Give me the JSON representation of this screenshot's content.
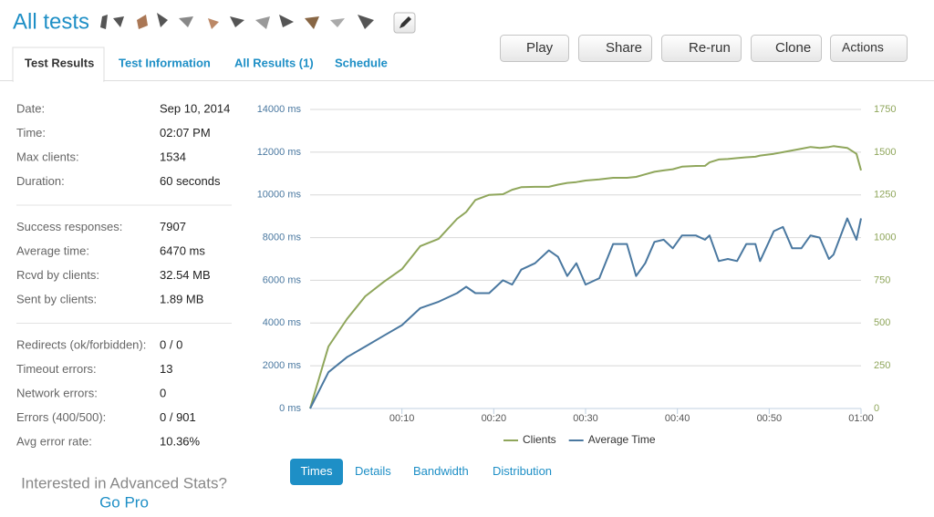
{
  "header": {
    "title": "All tests"
  },
  "tabs": [
    "Test Results",
    "Test Information",
    "All Results (1)",
    "Schedule"
  ],
  "buttons": [
    "Play",
    "Share",
    "Re-run",
    "Clone",
    "Actions"
  ],
  "stats": [
    [
      [
        "Date:",
        "Sep 10, 2014"
      ],
      [
        "Time:",
        "02:07 PM"
      ],
      [
        "Max clients:",
        "1534"
      ],
      [
        "Duration:",
        "60 seconds"
      ]
    ],
    [
      [
        "Success responses:",
        "7907"
      ],
      [
        "Average time:",
        "6470 ms"
      ],
      [
        "Rcvd by clients:",
        "32.54 MB"
      ],
      [
        "Sent by clients:",
        "1.89 MB"
      ]
    ],
    [
      [
        "Redirects (ok/forbidden):",
        "0 / 0"
      ],
      [
        "Timeout errors:",
        "13"
      ],
      [
        "Network errors:",
        "0"
      ],
      [
        "Errors (400/500):",
        "0 / 901"
      ],
      [
        "Avg error rate:",
        "10.36%"
      ]
    ]
  ],
  "promo": {
    "text": "Interested in Advanced Stats?",
    "link": "Go Pro"
  },
  "chart_tabs": [
    "Times",
    "Details",
    "Bandwidth",
    "Distribution"
  ],
  "chart_data": {
    "type": "line",
    "x": [
      0,
      2,
      4,
      6,
      8,
      10,
      12,
      14,
      16,
      17,
      18,
      19.5,
      21,
      22,
      23,
      24.5,
      26,
      27,
      28,
      29,
      30,
      31.5,
      33,
      34.5,
      35.5,
      36.5,
      37.5,
      38.5,
      39.5,
      40.5,
      42,
      43,
      43.5,
      44.5,
      45.5,
      46.5,
      47.5,
      48.5,
      49,
      50.5,
      51.5,
      52.5,
      53.5,
      54.5,
      55.5,
      56.5,
      57,
      58.5,
      59.5,
      60
    ],
    "series": [
      {
        "name": "Clients",
        "color": "#8fa65b",
        "axis": "y2",
        "values": [
          0,
          363,
          523,
          656,
          740,
          816,
          950,
          993,
          1110,
          1150,
          1220,
          1250,
          1254,
          1280,
          1295,
          1297,
          1297,
          1310,
          1320,
          1325,
          1334,
          1340,
          1350,
          1350,
          1355,
          1370,
          1385,
          1393,
          1400,
          1415,
          1419,
          1420,
          1440,
          1457,
          1460,
          1465,
          1470,
          1473,
          1480,
          1490,
          1500,
          1510,
          1520,
          1530,
          1525,
          1530,
          1535,
          1525,
          1490,
          1393
        ]
      },
      {
        "name": "Average Time",
        "color": "#4a78a0",
        "values": [
          0,
          1700,
          2400,
          2900,
          3400,
          3900,
          4700,
          5000,
          5400,
          5700,
          5400,
          5400,
          6000,
          5800,
          6500,
          6800,
          7400,
          7100,
          6200,
          6800,
          5800,
          6100,
          7700,
          7700,
          6200,
          6800,
          7800,
          7900,
          7500,
          8100,
          8100,
          7900,
          8100,
          6900,
          7000,
          6900,
          7700,
          7700,
          6900,
          8300,
          8500,
          7500,
          7500,
          8100,
          8000,
          7000,
          7200,
          8900,
          7900,
          8900
        ]
      }
    ],
    "xlim": [
      0,
      60
    ],
    "xticks": [
      {
        "value": 10,
        "label": "00:10"
      },
      {
        "value": 20,
        "label": "00:20"
      },
      {
        "value": 30,
        "label": "00:30"
      },
      {
        "value": 40,
        "label": "00:40"
      },
      {
        "value": 50,
        "label": "00:50"
      },
      {
        "value": 60,
        "label": "01:00"
      }
    ],
    "ylim": [
      0,
      14000
    ],
    "yticks": [
      {
        "value": 0,
        "label": "0 ms"
      },
      {
        "value": 2000,
        "label": "2000 ms"
      },
      {
        "value": 4000,
        "label": "4000 ms"
      },
      {
        "value": 6000,
        "label": "6000 ms"
      },
      {
        "value": 8000,
        "label": "8000 ms"
      },
      {
        "value": 10000,
        "label": "10000 ms"
      },
      {
        "value": 12000,
        "label": "12000 ms"
      },
      {
        "value": 14000,
        "label": "14000 ms"
      }
    ],
    "y2lim": [
      0,
      1750
    ],
    "y2ticks": [
      0,
      250,
      500,
      750,
      1000,
      1250,
      1500,
      1750
    ],
    "grid": true,
    "legend": "bottom"
  }
}
